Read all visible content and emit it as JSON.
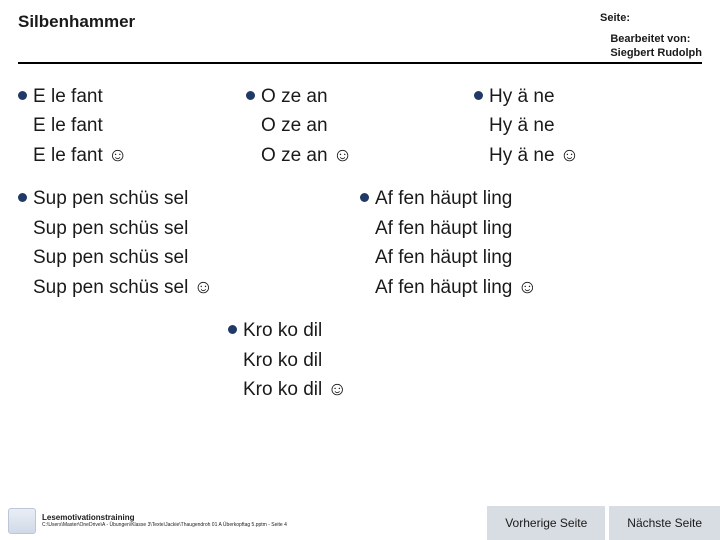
{
  "header": {
    "title": "Silbenhammer",
    "page_label": "Seite:",
    "editor_label": "Bearbeitet von:",
    "editor_name": "Siegbert Rudolph"
  },
  "words": {
    "elefant": {
      "syllables": [
        "E",
        "le",
        "fant"
      ],
      "repeats": 3
    },
    "ozean": {
      "syllables": [
        "O",
        "ze",
        "an"
      ],
      "repeats": 3
    },
    "hyaene": {
      "syllables": [
        "Hy",
        "ä",
        "ne"
      ],
      "repeats": 3
    },
    "suppenschuessel": {
      "syllables": [
        "Sup",
        "pen",
        "schüs",
        "sel"
      ],
      "repeats": 4
    },
    "affenhaeutpling": {
      "syllables": [
        "Af",
        "fen",
        "häupt",
        "ling"
      ],
      "repeats": 4
    },
    "krokodil": {
      "syllables": [
        "Kro",
        "ko",
        "dil"
      ],
      "repeats": 3
    }
  },
  "smile": "☺",
  "footer": {
    "training": "Lesemotivationstraining",
    "path": "C:\\Users\\Master\\OneDrive\\A - Übungen\\Klasse 3\\Texte\\Jackie\\Thaugendroh 01 A Überkopftag 5.pptm - Seite 4"
  },
  "nav": {
    "prev": "Vorherige Seite",
    "next": "Nächste Seite"
  }
}
